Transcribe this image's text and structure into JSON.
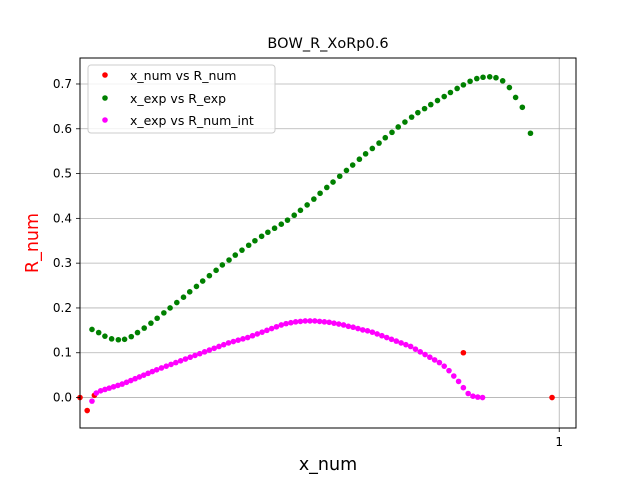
{
  "colors": {
    "series_num": "#ff0000",
    "series_exp": "#008000",
    "series_int": "#ff00ff",
    "ylabel": "#ff0000",
    "grid": "#b0b0b0"
  },
  "chart_data": {
    "type": "scatter",
    "title": "BOW_R_XoRp0.6",
    "xlabel": "x_num",
    "ylabel": "R_num",
    "xlim": [
      0.0,
      1.035
    ],
    "ylim": [
      -0.068,
      0.758
    ],
    "x_ticks": [
      1
    ],
    "x_tick_labels": [
      "1"
    ],
    "y_ticks": [
      0.0,
      0.1,
      0.2,
      0.3,
      0.4,
      0.5,
      0.6,
      0.7
    ],
    "y_tick_labels": [
      "0.0",
      "0.1",
      "0.2",
      "0.3",
      "0.4",
      "0.5",
      "0.6",
      "0.7"
    ],
    "grid": "horizontal lines and x tick",
    "legend_position": "upper-left",
    "series": [
      {
        "name": "x_num vs R_num",
        "color": "#ff0000",
        "points": [
          [
            0.0,
            0.0
          ],
          [
            0.015,
            -0.029
          ],
          [
            0.03,
            0.005
          ],
          [
            0.8,
            0.1
          ],
          [
            0.985,
            0.0
          ]
        ]
      },
      {
        "name": "x_exp vs R_exp",
        "color": "#008000",
        "points": [
          [
            0.025,
            0.152
          ],
          [
            0.039,
            0.145
          ],
          [
            0.052,
            0.137
          ],
          [
            0.066,
            0.131
          ],
          [
            0.08,
            0.129
          ],
          [
            0.093,
            0.13
          ],
          [
            0.107,
            0.136
          ],
          [
            0.12,
            0.145
          ],
          [
            0.134,
            0.155
          ],
          [
            0.148,
            0.166
          ],
          [
            0.161,
            0.177
          ],
          [
            0.175,
            0.189
          ],
          [
            0.188,
            0.2
          ],
          [
            0.202,
            0.212
          ],
          [
            0.216,
            0.224
          ],
          [
            0.229,
            0.236
          ],
          [
            0.243,
            0.248
          ],
          [
            0.256,
            0.26
          ],
          [
            0.27,
            0.272
          ],
          [
            0.284,
            0.284
          ],
          [
            0.297,
            0.296
          ],
          [
            0.311,
            0.307
          ],
          [
            0.324,
            0.318
          ],
          [
            0.338,
            0.329
          ],
          [
            0.352,
            0.34
          ],
          [
            0.365,
            0.35
          ],
          [
            0.379,
            0.36
          ],
          [
            0.392,
            0.369
          ],
          [
            0.406,
            0.378
          ],
          [
            0.42,
            0.387
          ],
          [
            0.433,
            0.396
          ],
          [
            0.447,
            0.407
          ],
          [
            0.46,
            0.418
          ],
          [
            0.474,
            0.43
          ],
          [
            0.488,
            0.443
          ],
          [
            0.501,
            0.456
          ],
          [
            0.515,
            0.469
          ],
          [
            0.528,
            0.481
          ],
          [
            0.542,
            0.494
          ],
          [
            0.556,
            0.507
          ],
          [
            0.569,
            0.519
          ],
          [
            0.583,
            0.532
          ],
          [
            0.596,
            0.544
          ],
          [
            0.61,
            0.556
          ],
          [
            0.624,
            0.568
          ],
          [
            0.637,
            0.58
          ],
          [
            0.651,
            0.592
          ],
          [
            0.664,
            0.604
          ],
          [
            0.678,
            0.615
          ],
          [
            0.692,
            0.626
          ],
          [
            0.705,
            0.636
          ],
          [
            0.719,
            0.645
          ],
          [
            0.732,
            0.654
          ],
          [
            0.746,
            0.663
          ],
          [
            0.76,
            0.672
          ],
          [
            0.773,
            0.681
          ],
          [
            0.787,
            0.69
          ],
          [
            0.8,
            0.698
          ],
          [
            0.814,
            0.706
          ],
          [
            0.828,
            0.712
          ],
          [
            0.841,
            0.715
          ],
          [
            0.855,
            0.716
          ],
          [
            0.868,
            0.714
          ],
          [
            0.882,
            0.707
          ],
          [
            0.896,
            0.692
          ],
          [
            0.909,
            0.67
          ],
          [
            0.923,
            0.648
          ],
          [
            0.94,
            0.59
          ]
        ]
      },
      {
        "name": "x_exp vs R_num_int",
        "color": "#ff00ff",
        "points": [
          [
            0.025,
            -0.008
          ],
          [
            0.034,
            0.01
          ],
          [
            0.043,
            0.015
          ],
          [
            0.052,
            0.018
          ],
          [
            0.061,
            0.021
          ],
          [
            0.07,
            0.024
          ],
          [
            0.079,
            0.027
          ],
          [
            0.088,
            0.03
          ],
          [
            0.097,
            0.034
          ],
          [
            0.106,
            0.038
          ],
          [
            0.115,
            0.042
          ],
          [
            0.124,
            0.046
          ],
          [
            0.133,
            0.05
          ],
          [
            0.142,
            0.054
          ],
          [
            0.151,
            0.058
          ],
          [
            0.16,
            0.062
          ],
          [
            0.17,
            0.066
          ],
          [
            0.18,
            0.07
          ],
          [
            0.19,
            0.074
          ],
          [
            0.2,
            0.078
          ],
          [
            0.21,
            0.082
          ],
          [
            0.22,
            0.086
          ],
          [
            0.23,
            0.09
          ],
          [
            0.24,
            0.094
          ],
          [
            0.25,
            0.098
          ],
          [
            0.26,
            0.102
          ],
          [
            0.27,
            0.106
          ],
          [
            0.28,
            0.11
          ],
          [
            0.29,
            0.114
          ],
          [
            0.3,
            0.118
          ],
          [
            0.31,
            0.122
          ],
          [
            0.32,
            0.125
          ],
          [
            0.33,
            0.128
          ],
          [
            0.34,
            0.131
          ],
          [
            0.35,
            0.134
          ],
          [
            0.36,
            0.138
          ],
          [
            0.37,
            0.142
          ],
          [
            0.38,
            0.146
          ],
          [
            0.39,
            0.15
          ],
          [
            0.4,
            0.154
          ],
          [
            0.41,
            0.158
          ],
          [
            0.42,
            0.162
          ],
          [
            0.43,
            0.165
          ],
          [
            0.44,
            0.167
          ],
          [
            0.45,
            0.169
          ],
          [
            0.46,
            0.17
          ],
          [
            0.47,
            0.171
          ],
          [
            0.48,
            0.171
          ],
          [
            0.49,
            0.171
          ],
          [
            0.5,
            0.17
          ],
          [
            0.51,
            0.169
          ],
          [
            0.52,
            0.168
          ],
          [
            0.53,
            0.166
          ],
          [
            0.54,
            0.164
          ],
          [
            0.55,
            0.162
          ],
          [
            0.56,
            0.159
          ],
          [
            0.57,
            0.157
          ],
          [
            0.58,
            0.154
          ],
          [
            0.59,
            0.151
          ],
          [
            0.6,
            0.149
          ],
          [
            0.61,
            0.146
          ],
          [
            0.62,
            0.142
          ],
          [
            0.63,
            0.138
          ],
          [
            0.64,
            0.134
          ],
          [
            0.65,
            0.13
          ],
          [
            0.66,
            0.126
          ],
          [
            0.67,
            0.122
          ],
          [
            0.68,
            0.118
          ],
          [
            0.69,
            0.114
          ],
          [
            0.7,
            0.108
          ],
          [
            0.71,
            0.102
          ],
          [
            0.72,
            0.096
          ],
          [
            0.73,
            0.09
          ],
          [
            0.74,
            0.084
          ],
          [
            0.75,
            0.078
          ],
          [
            0.76,
            0.07
          ],
          [
            0.77,
            0.06
          ],
          [
            0.78,
            0.048
          ],
          [
            0.79,
            0.036
          ],
          [
            0.8,
            0.022
          ],
          [
            0.81,
            0.009
          ],
          [
            0.82,
            0.003
          ],
          [
            0.83,
            0.001
          ],
          [
            0.84,
            0.0
          ]
        ]
      }
    ]
  }
}
